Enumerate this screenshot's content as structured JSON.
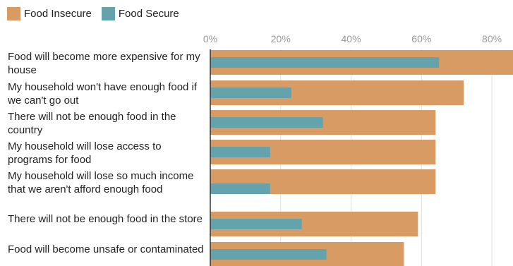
{
  "legend": {
    "items": [
      {
        "label": "Food Insecure",
        "color": "#d89b63"
      },
      {
        "label": "Food Secure",
        "color": "#64a3ab"
      }
    ]
  },
  "chart_data": {
    "type": "bar",
    "orientation": "horizontal",
    "categories": [
      "Food will become more expensive for my house",
      "My household won't have enough food if we can't go out",
      "There will not be enough food in the country",
      "My household will lose access to programs for food",
      "My household will lose so much income that we aren't afford enough food",
      "There will not be enough food in the store",
      "Food will become unsafe or contaminated"
    ],
    "series": [
      {
        "name": "Food Insecure",
        "color": "#d89b63",
        "values": [
          86,
          72,
          64,
          64,
          64,
          59,
          55
        ]
      },
      {
        "name": "Food Secure",
        "color": "#64a3ab",
        "values": [
          65,
          23,
          32,
          17,
          17,
          26,
          33
        ]
      }
    ],
    "xlim": [
      0,
      86
    ],
    "ticks": [
      "0%",
      "20%",
      "40%",
      "60%",
      "80%"
    ],
    "tick_values": [
      0,
      20,
      40,
      60,
      80
    ],
    "grid": true,
    "legend_position": "top-left"
  }
}
